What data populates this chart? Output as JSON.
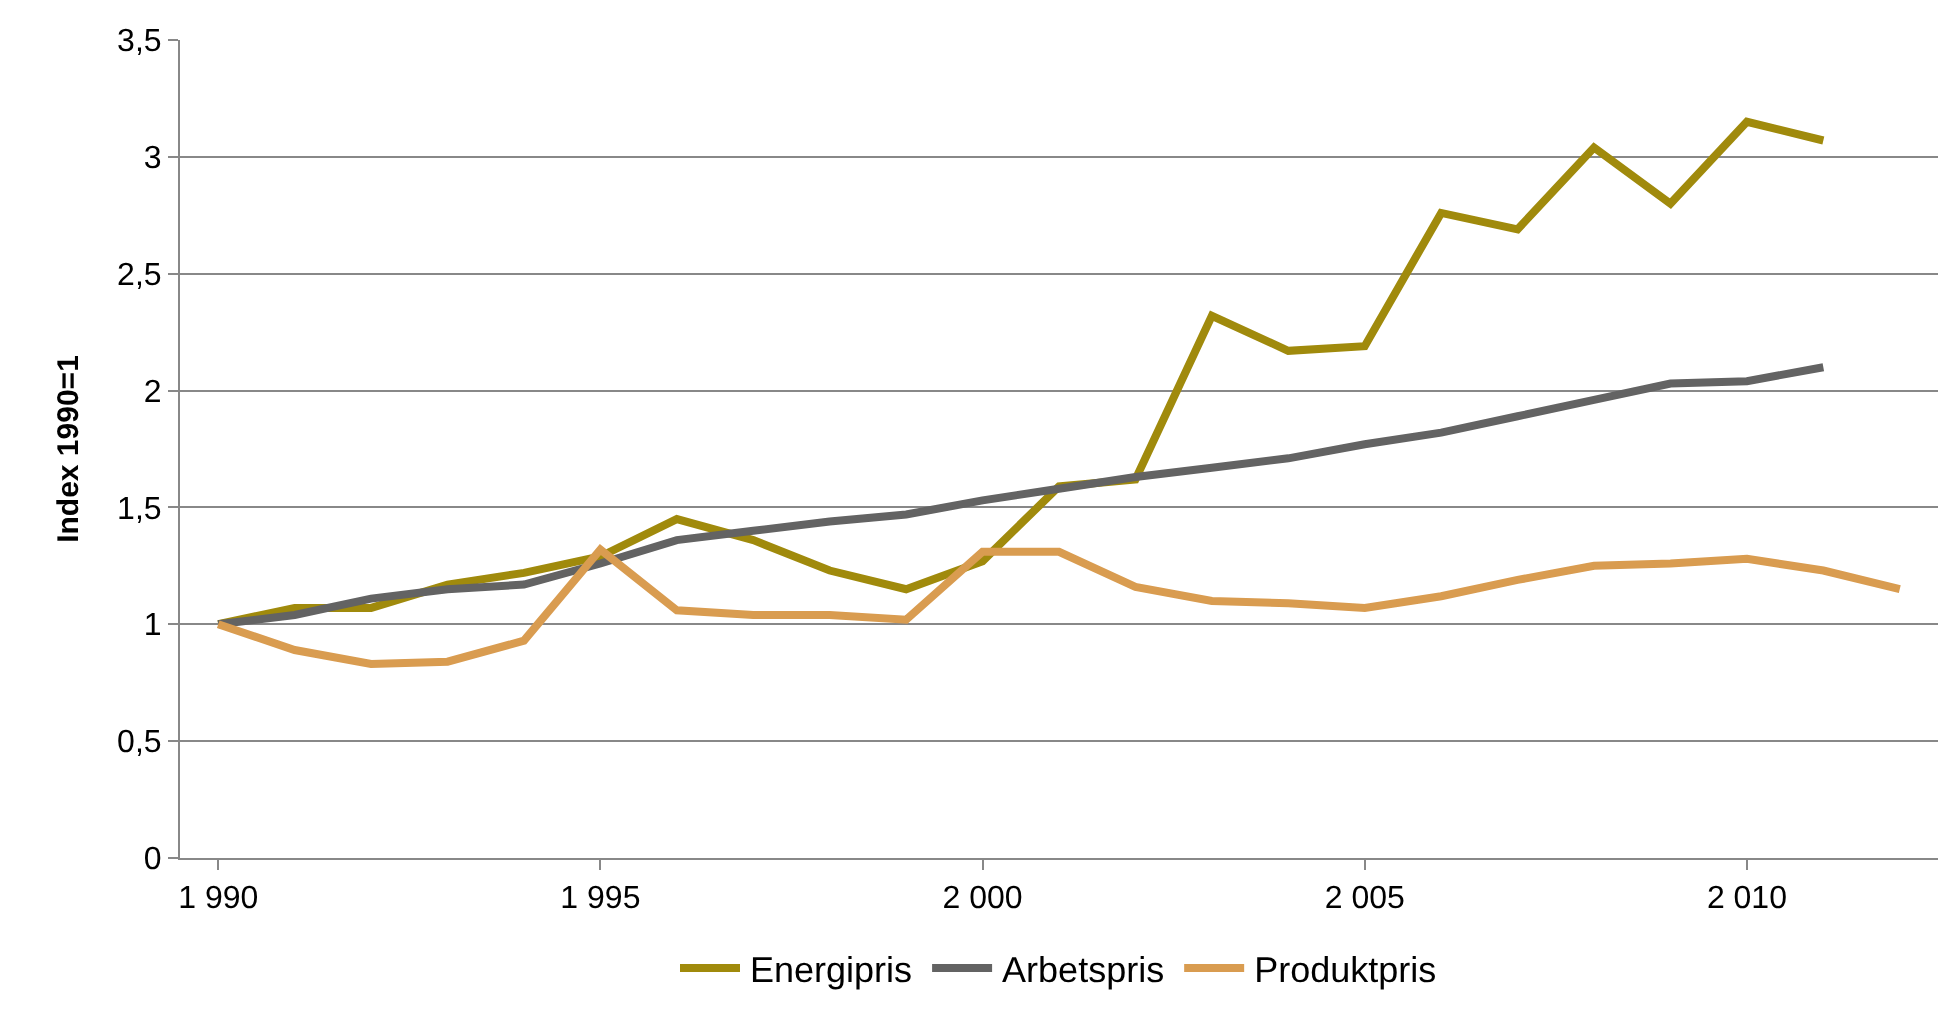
{
  "chart_data": {
    "type": "line",
    "ylabel": "Index 1990=1",
    "x": [
      1990,
      1991,
      1992,
      1993,
      1994,
      1995,
      1996,
      1997,
      1998,
      1999,
      2000,
      2001,
      2002,
      2003,
      2004,
      2005,
      2006,
      2007,
      2008,
      2009,
      2010,
      2011,
      2012
    ],
    "series": [
      {
        "name": "Energipris",
        "color": "#a08a0c",
        "values": [
          1.0,
          1.07,
          1.07,
          1.17,
          1.22,
          1.29,
          1.45,
          1.36,
          1.23,
          1.15,
          1.27,
          1.59,
          1.62,
          2.32,
          2.17,
          2.19,
          2.76,
          2.69,
          3.04,
          2.8,
          3.15,
          3.07,
          null
        ]
      },
      {
        "name": "Arbetspris",
        "color": "#636363",
        "values": [
          1.0,
          1.04,
          1.11,
          1.15,
          1.17,
          1.26,
          1.36,
          1.4,
          1.44,
          1.47,
          1.53,
          1.58,
          1.63,
          1.67,
          1.71,
          1.77,
          1.82,
          1.89,
          1.96,
          2.03,
          2.04,
          2.1,
          null
        ]
      },
      {
        "name": "Produktpris",
        "color": "#d99c50",
        "values": [
          1.0,
          0.89,
          0.83,
          0.84,
          0.93,
          1.32,
          1.06,
          1.04,
          1.04,
          1.02,
          1.31,
          1.31,
          1.16,
          1.1,
          1.09,
          1.07,
          1.12,
          1.19,
          1.25,
          1.26,
          1.28,
          1.23,
          1.15
        ]
      }
    ],
    "xlim": [
      1989.5,
      2012.5
    ],
    "xticks": [
      {
        "value": 1990,
        "label": "1 990"
      },
      {
        "value": 1995,
        "label": "1 995"
      },
      {
        "value": 2000,
        "label": "2 000"
      },
      {
        "value": 2005,
        "label": "2 005"
      },
      {
        "value": 2010,
        "label": "2 010"
      }
    ],
    "ylim": [
      0,
      3.5
    ],
    "yticks": [
      0,
      {
        "value": 0.5,
        "label": "0,5"
      },
      1,
      {
        "value": 1.5,
        "label": "1,5"
      },
      2,
      {
        "value": 2.5,
        "label": "2,5"
      },
      3,
      {
        "value": 3.5,
        "label": "3,5"
      }
    ],
    "grid": "y",
    "legend": "bottom",
    "marker": "none",
    "line_style": "solid"
  }
}
